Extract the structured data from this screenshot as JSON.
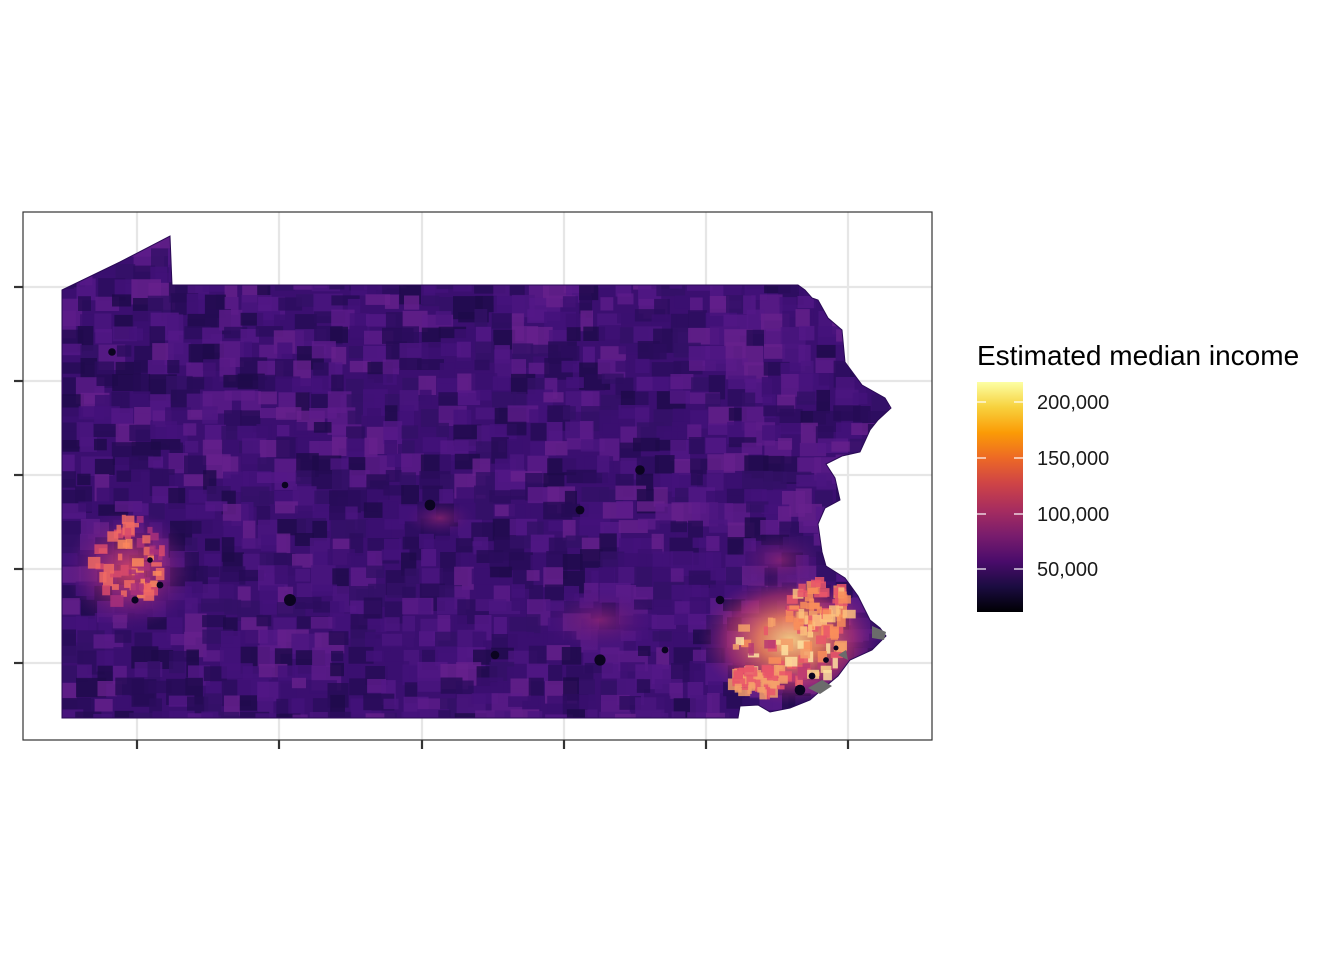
{
  "map": {
    "region": "Pennsylvania",
    "unit": "census tract",
    "palette": "magma",
    "na_color": "#6b6b6b",
    "grid": true,
    "tick_labels_shown": false,
    "x_ticks": 6,
    "y_ticks": 5
  },
  "legend": {
    "title": "Estimated median income",
    "placement": "right",
    "min": 10000,
    "max": 220000,
    "breaks": [
      {
        "value": 50000,
        "label": "50,000"
      },
      {
        "value": 100000,
        "label": "100,000"
      },
      {
        "value": 150000,
        "label": "150,000"
      },
      {
        "value": 200000,
        "label": "200,000"
      }
    ],
    "stops": [
      "#000004",
      "#1b0c41",
      "#4a0c6b",
      "#781c6d",
      "#a52c60",
      "#cf4446",
      "#ed6925",
      "#fb9b06",
      "#f7d13d",
      "#fcffa4"
    ]
  },
  "colors": {
    "panel_border": "#333333",
    "grid_line": "#e6e6e6",
    "base_fill": "#3b0f70"
  }
}
